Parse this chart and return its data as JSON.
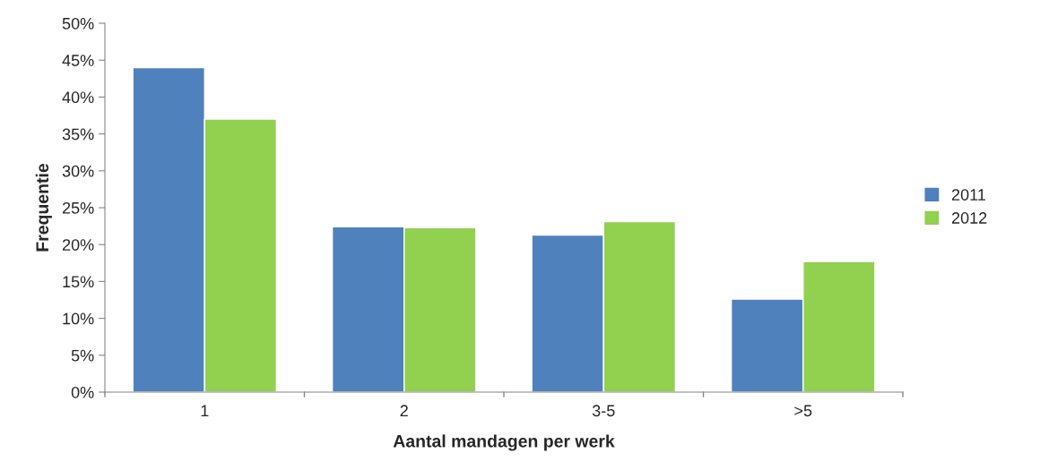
{
  "chart_data": {
    "type": "bar",
    "xlabel": "Aantal mandagen per werk",
    "ylabel": "Frequentie",
    "categories": [
      "1",
      "2",
      "3-5",
      ">5"
    ],
    "series": [
      {
        "name": "2011",
        "color": "#4f81bd",
        "values": [
          44.0,
          22.4,
          21.3,
          12.6
        ]
      },
      {
        "name": "2012",
        "color": "#92d050",
        "values": [
          37.0,
          22.3,
          23.1,
          17.7
        ]
      }
    ],
    "ylim": [
      0,
      50
    ],
    "yticks": [
      {
        "value": 0,
        "label": "0%"
      },
      {
        "value": 5,
        "label": "5%"
      },
      {
        "value": 10,
        "label": "10%"
      },
      {
        "value": 15,
        "label": "15%"
      },
      {
        "value": 20,
        "label": "20%"
      },
      {
        "value": 25,
        "label": "25%"
      },
      {
        "value": 30,
        "label": "30%"
      },
      {
        "value": 35,
        "label": "35%"
      },
      {
        "value": 40,
        "label": "40%"
      },
      {
        "value": 45,
        "label": "45%"
      },
      {
        "value": 50,
        "label": "50%"
      }
    ],
    "grid": false,
    "legend": "right"
  }
}
